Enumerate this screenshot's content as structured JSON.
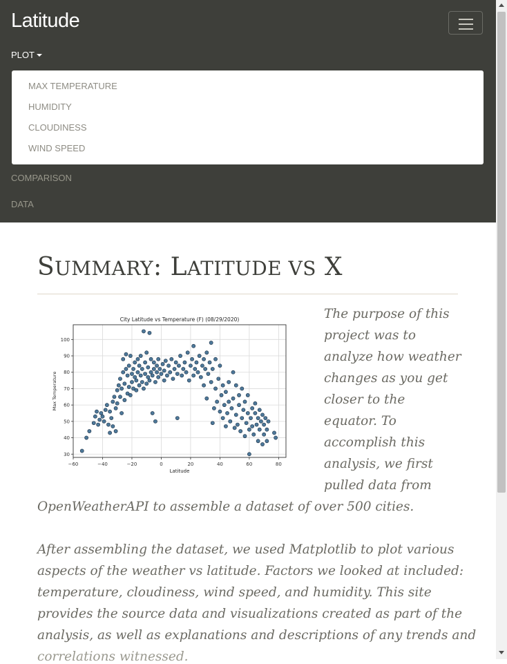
{
  "navbar": {
    "brand": "Latitude",
    "plot_label": "PLOT",
    "dropdown": [
      "MAX TEMPERATURE",
      "HUMIDITY",
      "CLOUDINESS",
      "WIND SPEED"
    ],
    "links": [
      "COMPARISON",
      "DATA"
    ]
  },
  "main": {
    "title_parts": [
      "S",
      "UMMARY",
      ": L",
      "ATITUDE VS",
      " X"
    ],
    "paragraph1_lines": [
      "The purpose of this",
      "project was to",
      "analyze how weather",
      "changes as you get",
      "closer to the",
      "equator. To",
      "accomplish this",
      "analysis, we first",
      "pulled data from",
      "OpenWeatherAPI to assemble a dataset of over 500 cities."
    ],
    "paragraph2_lines": [
      "After assembling the dataset, we used Matplotlib to plot various",
      "aspects of the weather vs latitude. Factors we looked at included:",
      "temperature, cloudiness, wind speed, and humidity. This site",
      "provides the source data and visualizations created as part of the",
      "analysis, as well as explanations and descriptions of any trends and",
      "correlations witnessed."
    ]
  },
  "chart_data": {
    "type": "scatter",
    "title": "City Latitude vs Temperature (F) (08/29/2020)",
    "xlabel": "Latitude",
    "ylabel": "Max Temperature",
    "xlim": [
      -60,
      85
    ],
    "ylim": [
      28,
      109
    ],
    "xticks": [
      "−60",
      "−40",
      "−20",
      "0",
      "20",
      "40",
      "60",
      "80"
    ],
    "yticks": [
      "30",
      "40",
      "50",
      "60",
      "70",
      "80",
      "90",
      "100"
    ],
    "grid": true,
    "colors": {
      "point": "#3b6a8f",
      "edge": "#1b2f44"
    },
    "points": [
      [
        -54,
        32
      ],
      [
        -51,
        40
      ],
      [
        -49,
        44
      ],
      [
        -46,
        49
      ],
      [
        -45,
        53
      ],
      [
        -44,
        56
      ],
      [
        -43,
        48
      ],
      [
        -42,
        51
      ],
      [
        -41,
        55
      ],
      [
        -40,
        53
      ],
      [
        -39,
        50
      ],
      [
        -38,
        57
      ],
      [
        -37,
        60
      ],
      [
        -36,
        48
      ],
      [
        -35,
        43
      ],
      [
        -35,
        56
      ],
      [
        -34,
        52
      ],
      [
        -33,
        47
      ],
      [
        -33,
        62
      ],
      [
        -32,
        65
      ],
      [
        -31,
        44
      ],
      [
        -31,
        58
      ],
      [
        -30,
        61
      ],
      [
        -30,
        69
      ],
      [
        -29,
        72
      ],
      [
        -28,
        65
      ],
      [
        -28,
        76
      ],
      [
        -27,
        55
      ],
      [
        -27,
        70
      ],
      [
        -26,
        80
      ],
      [
        -26,
        88
      ],
      [
        -25,
        63
      ],
      [
        -25,
        73
      ],
      [
        -24,
        91
      ],
      [
        -24,
        82
      ],
      [
        -23,
        67
      ],
      [
        -23,
        78
      ],
      [
        -22,
        71
      ],
      [
        -22,
        84
      ],
      [
        -21,
        66
      ],
      [
        -21,
        90
      ],
      [
        -20,
        74
      ],
      [
        -20,
        79
      ],
      [
        -19,
        70
      ],
      [
        -19,
        82
      ],
      [
        -18,
        77
      ],
      [
        -18,
        86
      ],
      [
        -17,
        69
      ],
      [
        -17,
        75
      ],
      [
        -16,
        80
      ],
      [
        -16,
        88
      ],
      [
        -15,
        72
      ],
      [
        -15,
        84
      ],
      [
        -14,
        78
      ],
      [
        -14,
        90
      ],
      [
        -13,
        74
      ],
      [
        -13,
        82
      ],
      [
        -12,
        105
      ],
      [
        -12,
        70
      ],
      [
        -11,
        79
      ],
      [
        -11,
        86
      ],
      [
        -10,
        73
      ],
      [
        -10,
        92
      ],
      [
        -9,
        77
      ],
      [
        -9,
        83
      ],
      [
        -8,
        75
      ],
      [
        -8,
        104
      ],
      [
        -7,
        80
      ],
      [
        -7,
        88
      ],
      [
        -6,
        55
      ],
      [
        -6,
        78
      ],
      [
        -5,
        82
      ],
      [
        -5,
        86
      ],
      [
        -4,
        50
      ],
      [
        -4,
        74
      ],
      [
        -3,
        80
      ],
      [
        -3,
        84
      ],
      [
        -2,
        77
      ],
      [
        -2,
        88
      ],
      [
        -1,
        82
      ],
      [
        0,
        79
      ],
      [
        1,
        85
      ],
      [
        2,
        75
      ],
      [
        2,
        81
      ],
      [
        3,
        87
      ],
      [
        4,
        78
      ],
      [
        5,
        84
      ],
      [
        6,
        80
      ],
      [
        7,
        88
      ],
      [
        8,
        76
      ],
      [
        9,
        82
      ],
      [
        10,
        86
      ],
      [
        11,
        52
      ],
      [
        11,
        79
      ],
      [
        12,
        84
      ],
      [
        13,
        90
      ],
      [
        14,
        78
      ],
      [
        15,
        82
      ],
      [
        16,
        86
      ],
      [
        17,
        80
      ],
      [
        18,
        92
      ],
      [
        19,
        75
      ],
      [
        20,
        84
      ],
      [
        21,
        88
      ],
      [
        22,
        78
      ],
      [
        22,
        96
      ],
      [
        23,
        82
      ],
      [
        24,
        86
      ],
      [
        25,
        80
      ],
      [
        26,
        90
      ],
      [
        27,
        77
      ],
      [
        28,
        84
      ],
      [
        29,
        88
      ],
      [
        29,
        72
      ],
      [
        30,
        82
      ],
      [
        31,
        92
      ],
      [
        31,
        64
      ],
      [
        32,
        79
      ],
      [
        33,
        86
      ],
      [
        34,
        74
      ],
      [
        34,
        98
      ],
      [
        35,
        82
      ],
      [
        35,
        49
      ],
      [
        36,
        58
      ],
      [
        37,
        70
      ],
      [
        37,
        88
      ],
      [
        38,
        62
      ],
      [
        39,
        76
      ],
      [
        40,
        56
      ],
      [
        40,
        84
      ],
      [
        41,
        66
      ],
      [
        42,
        72
      ],
      [
        42,
        52
      ],
      [
        43,
        60
      ],
      [
        44,
        68
      ],
      [
        44,
        47
      ],
      [
        45,
        55
      ],
      [
        46,
        74
      ],
      [
        46,
        62
      ],
      [
        47,
        50
      ],
      [
        48,
        58
      ],
      [
        49,
        64
      ],
      [
        49,
        80
      ],
      [
        50,
        46
      ],
      [
        51,
        72
      ],
      [
        51,
        54
      ],
      [
        52,
        48
      ],
      [
        53,
        60
      ],
      [
        53,
        66
      ],
      [
        54,
        44
      ],
      [
        55,
        70
      ],
      [
        55,
        52
      ],
      [
        56,
        57
      ],
      [
        57,
        41
      ],
      [
        57,
        62
      ],
      [
        58,
        49
      ],
      [
        59,
        55
      ],
      [
        59,
        66
      ],
      [
        60,
        45
      ],
      [
        60,
        30
      ],
      [
        61,
        52
      ],
      [
        62,
        58
      ],
      [
        62,
        47
      ],
      [
        63,
        42
      ],
      [
        64,
        55
      ],
      [
        64,
        61
      ],
      [
        65,
        48
      ],
      [
        66,
        52
      ],
      [
        66,
        38
      ],
      [
        67,
        45
      ],
      [
        67,
        57
      ],
      [
        68,
        50
      ],
      [
        69,
        36
      ],
      [
        69,
        54
      ],
      [
        70,
        42
      ],
      [
        70,
        48
      ],
      [
        71,
        52
      ],
      [
        72,
        38
      ],
      [
        72,
        45
      ],
      [
        73,
        50
      ],
      [
        77,
        43
      ],
      [
        78,
        40
      ]
    ]
  }
}
